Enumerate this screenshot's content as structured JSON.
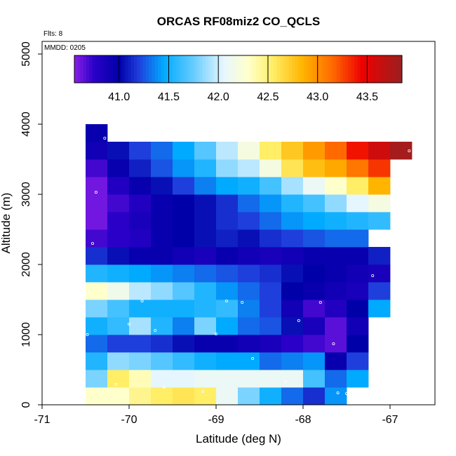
{
  "chart_data": {
    "type": "heatmap",
    "title": "ORCAS RF08miz2 CO_QCLS",
    "xlabel": "Latitude (deg N)",
    "ylabel": "Altitude (m)",
    "xlim": [
      -71,
      -66.5
    ],
    "ylim": [
      0,
      5200
    ],
    "x_ticks": [
      -71,
      -70,
      -69,
      -68,
      -67
    ],
    "x_tick_labels": [
      "-71",
      "-70",
      "-69",
      "-68",
      "-67"
    ],
    "y_ticks": [
      0,
      1000,
      2000,
      3000,
      4000,
      5000
    ],
    "y_tick_labels": [
      "0",
      "1000",
      "2000",
      "3000",
      "4000",
      "5000"
    ],
    "annotations": {
      "flights": "Flts: 8",
      "date": "MMDD: 0205"
    },
    "colorbar": {
      "min": 40.55,
      "max": 43.85,
      "ticks": [
        41.0,
        41.5,
        42.0,
        42.5,
        43.0,
        43.5
      ],
      "tick_labels": [
        "41.0",
        "41.5",
        "42.0",
        "42.5",
        "43.0",
        "43.5"
      ],
      "stops": [
        {
          "v": 40.55,
          "c": "#8a1fe8"
        },
        {
          "v": 40.75,
          "c": "#2a00c8"
        },
        {
          "v": 41.0,
          "c": "#0000a8"
        },
        {
          "v": 41.2,
          "c": "#1f3fdc"
        },
        {
          "v": 41.45,
          "c": "#00aaff"
        },
        {
          "v": 41.75,
          "c": "#66ccff"
        },
        {
          "v": 42.05,
          "c": "#e6f6ff"
        },
        {
          "v": 42.3,
          "c": "#ffffcc"
        },
        {
          "v": 42.55,
          "c": "#ffee66"
        },
        {
          "v": 42.85,
          "c": "#ffb400"
        },
        {
          "v": 43.15,
          "c": "#ff6a00"
        },
        {
          "v": 43.45,
          "c": "#ee0000"
        },
        {
          "v": 43.85,
          "c": "#9a2020"
        }
      ]
    },
    "cell_size": {
      "dlat": 0.25,
      "dalt": 250
    },
    "rows": [
      {
        "alt": 0,
        "x0": -70.5,
        "values": [
          42.3,
          42.3,
          42.45,
          42.55,
          42.6,
          42.55,
          42.1,
          41.8,
          41.5,
          41.3,
          41.15,
          41.4
        ]
      },
      {
        "alt": 250,
        "x0": -70.5,
        "values": [
          41.8,
          42.55,
          42.35,
          42.05,
          42.05,
          42.1,
          42.1,
          42.1,
          42.1,
          42.1,
          41.65,
          41.3,
          41.45
        ]
      },
      {
        "alt": 500,
        "x0": -70.5,
        "values": [
          41.55,
          41.85,
          41.8,
          41.7,
          41.6,
          41.5,
          41.45,
          41.45,
          41.3,
          41.35,
          41.4,
          40.95,
          41.2
        ]
      },
      {
        "alt": 750,
        "x0": -70.5,
        "values": [
          41.3,
          41.2,
          41.2,
          41.15,
          41.05,
          40.95,
          40.95,
          40.9,
          40.85,
          40.75,
          40.7,
          40.65,
          41.0
        ]
      },
      {
        "alt": 1000,
        "x0": -70.5,
        "values": [
          41.5,
          41.6,
          41.9,
          41.55,
          41.35,
          41.8,
          41.45,
          41.3,
          41.25,
          41.05,
          40.85,
          40.65,
          40.9
        ]
      },
      {
        "alt": 1250,
        "x0": -70.5,
        "values": [
          41.8,
          41.65,
          41.5,
          41.5,
          41.5,
          41.55,
          41.6,
          41.35,
          41.2,
          40.9,
          40.7,
          40.8,
          41.0,
          41.45
        ]
      },
      {
        "alt": 1500,
        "x0": -70.5,
        "values": [
          42.3,
          42.15,
          41.95,
          41.85,
          41.7,
          41.55,
          41.4,
          41.3,
          41.2,
          41.0,
          40.95,
          40.9,
          40.85,
          41.2
        ]
      },
      {
        "alt": 1750,
        "x0": -70.5,
        "values": [
          41.55,
          41.5,
          41.45,
          41.4,
          41.35,
          41.3,
          41.25,
          41.2,
          41.15,
          41.05,
          41.0,
          40.95,
          40.9,
          40.85
        ]
      },
      {
        "alt": 2000,
        "x0": -70.5,
        "values": [
          41.15,
          41.05,
          40.95,
          40.95,
          40.9,
          40.85,
          40.95,
          40.9,
          40.85,
          40.9,
          40.95,
          40.95,
          40.95,
          41.1
        ]
      },
      {
        "alt": 2250,
        "x0": -70.5,
        "values": [
          40.7,
          40.75,
          40.8,
          40.95,
          41.0,
          41.05,
          41.1,
          41.05,
          41.15,
          41.2,
          41.25,
          41.3,
          41.3
        ]
      },
      {
        "alt": 2500,
        "x0": -70.5,
        "values": [
          40.6,
          40.75,
          40.85,
          40.95,
          41.0,
          41.05,
          41.15,
          41.2,
          41.3,
          41.4,
          41.45,
          41.5,
          41.55,
          41.6
        ]
      },
      {
        "alt": 2750,
        "x0": -70.5,
        "values": [
          40.6,
          40.7,
          40.8,
          40.95,
          41.0,
          41.05,
          41.15,
          41.3,
          41.4,
          41.55,
          41.65,
          41.85,
          42.05,
          42.2
        ]
      },
      {
        "alt": 3000,
        "x0": -70.5,
        "values": [
          40.6,
          40.8,
          40.95,
          41.05,
          41.2,
          41.35,
          41.45,
          41.5,
          41.65,
          41.9,
          42.1,
          42.3,
          42.55,
          42.85
        ]
      },
      {
        "alt": 3250,
        "x0": -70.5,
        "values": [
          40.7,
          40.95,
          41.1,
          41.25,
          41.4,
          41.55,
          41.85,
          41.95,
          42.2,
          42.6,
          42.8,
          42.9,
          43.1,
          43.3
        ]
      },
      {
        "alt": 3500,
        "x0": -70.5,
        "values": [
          40.9,
          41.05,
          41.2,
          41.3,
          41.45,
          41.7,
          41.95,
          42.2,
          42.55,
          42.75,
          42.95,
          43.15,
          43.4,
          43.6,
          43.8
        ]
      },
      {
        "alt": 3750,
        "x0": -70.5,
        "values": [
          40.95
        ]
      }
    ],
    "points": [
      {
        "lat": -70.28,
        "alt": 3800
      },
      {
        "lat": -70.38,
        "alt": 3030
      },
      {
        "lat": -70.42,
        "alt": 2300
      },
      {
        "lat": -70.45,
        "alt": 1600
      },
      {
        "lat": -70.48,
        "alt": 1000
      },
      {
        "lat": -70.0,
        "alt": 1150
      },
      {
        "lat": -69.85,
        "alt": 1480
      },
      {
        "lat": -69.7,
        "alt": 1060
      },
      {
        "lat": -69.0,
        "alt": 1010
      },
      {
        "lat": -68.88,
        "alt": 1480
      },
      {
        "lat": -68.7,
        "alt": 1460
      },
      {
        "lat": -68.58,
        "alt": 660
      },
      {
        "lat": -68.05,
        "alt": 1200
      },
      {
        "lat": -67.8,
        "alt": 1460
      },
      {
        "lat": -67.65,
        "alt": 870
      },
      {
        "lat": -67.2,
        "alt": 1840
      },
      {
        "lat": -66.95,
        "alt": 2720
      },
      {
        "lat": -66.78,
        "alt": 3620
      },
      {
        "lat": -70.15,
        "alt": 290
      },
      {
        "lat": -69.6,
        "alt": 250
      },
      {
        "lat": -69.15,
        "alt": 190
      },
      {
        "lat": -68.2,
        "alt": 330
      },
      {
        "lat": -67.6,
        "alt": 170
      },
      {
        "lat": -67.5,
        "alt": 160
      }
    ]
  }
}
